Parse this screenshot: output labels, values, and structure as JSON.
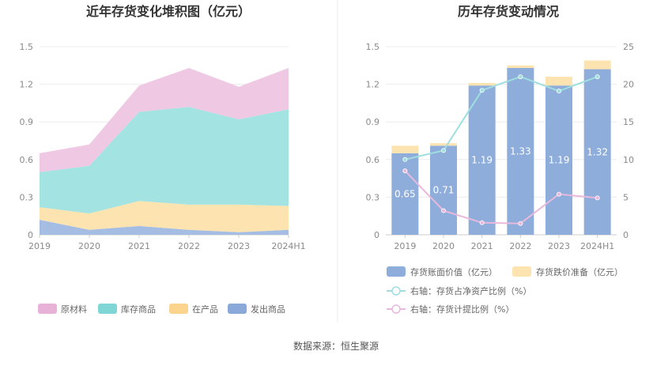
{
  "footer": {
    "source": "数据来源：恒生聚源"
  },
  "chart_data": [
    {
      "type": "area",
      "stacked": true,
      "title": "近年存货变化堆积图（亿元）",
      "categories": [
        "2019",
        "2020",
        "2021",
        "2022",
        "2023",
        "2024H1"
      ],
      "ylim": [
        0,
        1.5
      ],
      "yticks": [
        "0",
        "0.3",
        "0.6",
        "0.9",
        "1.2",
        "1.5"
      ],
      "grid": true,
      "legend_position": "bottom",
      "series": [
        {
          "name": "发出商品",
          "color": "#a5bce3",
          "legend_color": "#8aa8d8",
          "values": [
            0.12,
            0.04,
            0.07,
            0.04,
            0.02,
            0.04
          ]
        },
        {
          "name": "在产品",
          "color": "#fde3b0",
          "legend_color": "#fbd48d",
          "values": [
            0.1,
            0.13,
            0.2,
            0.2,
            0.22,
            0.19
          ]
        },
        {
          "name": "库存商品",
          "color": "#a3e3e1",
          "legend_color": "#7fd6d4",
          "values": [
            0.28,
            0.38,
            0.71,
            0.78,
            0.68,
            0.77
          ]
        },
        {
          "name": "原材料",
          "color": "#efc9e3",
          "legend_color": "#e8b1d6",
          "values": [
            0.15,
            0.17,
            0.21,
            0.31,
            0.26,
            0.33
          ]
        }
      ]
    },
    {
      "type": "bar",
      "stacked": true,
      "title": "历年存货变动情况",
      "categories": [
        "2019",
        "2020",
        "2021",
        "2022",
        "2023",
        "2024H1"
      ],
      "ylim": [
        0,
        1.5
      ],
      "yticks": [
        "0",
        "0.3",
        "0.6",
        "0.9",
        "1.2",
        "1.5"
      ],
      "y2lim": [
        0,
        25
      ],
      "y2ticks": [
        "0",
        "5",
        "10",
        "15",
        "20",
        "25"
      ],
      "grid": true,
      "legend_position": "bottom",
      "bar_series": [
        {
          "name": "存货账面价值（亿元）",
          "color": "#8eaddb",
          "values": [
            0.65,
            0.71,
            1.19,
            1.33,
            1.19,
            1.32
          ]
        },
        {
          "name": "存货跌价准备（亿元）",
          "color": "#fde3b0",
          "values": [
            0.06,
            0.02,
            0.02,
            0.02,
            0.07,
            0.07
          ]
        }
      ],
      "data_labels": [
        "0.65",
        "0.71",
        "1.19",
        "1.33",
        "1.19",
        "1.32"
      ],
      "line_series": [
        {
          "name": "右轴：存货占净资产比例（%）",
          "color": "#9fdede",
          "axis": "right",
          "values": [
            10.0,
            11.2,
            19.2,
            21.0,
            19.1,
            21.0
          ]
        },
        {
          "name": "右轴：存货计提比例（%）",
          "color": "#e9b8dc",
          "axis": "right",
          "values": [
            8.5,
            3.2,
            1.6,
            1.5,
            5.4,
            4.9
          ]
        }
      ]
    }
  ]
}
